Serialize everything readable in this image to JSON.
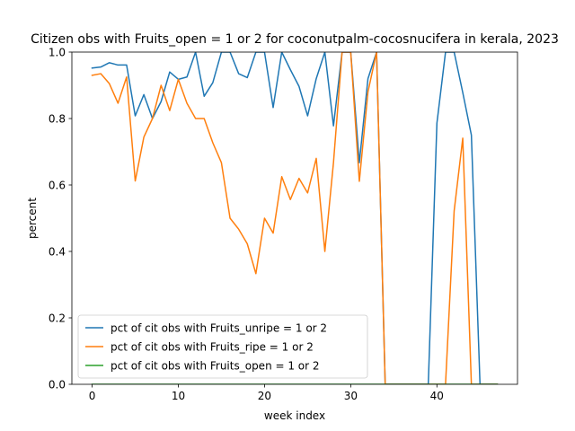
{
  "chart_data": {
    "type": "line",
    "title": "Citizen obs with Fruits_open = 1 or 2 for coconutpalm-cocosnucifera in kerala, 2023",
    "xlabel": "week index",
    "ylabel": "percent",
    "xlim": [
      -2.35,
      49.35
    ],
    "ylim": [
      0,
      1.0
    ],
    "xticks": [
      0,
      10,
      20,
      30,
      40
    ],
    "yticks": [
      0.0,
      0.2,
      0.4,
      0.6,
      0.8,
      1.0
    ],
    "ytick_labels": [
      "0.0",
      "0.2",
      "0.4",
      "0.6",
      "0.8",
      "1.0"
    ],
    "legend_position": "lower-left",
    "grid": false,
    "series": [
      {
        "name": "pct of cit obs with Fruits_unripe = 1 or 2",
        "color": "#1f77b4",
        "x": [
          0,
          1,
          2,
          3,
          4,
          5,
          6,
          7,
          8,
          9,
          10,
          11,
          12,
          13,
          14,
          15,
          16,
          17,
          18,
          19,
          20,
          21,
          22,
          23,
          24,
          25,
          26,
          27,
          28,
          29,
          30,
          31,
          32,
          33,
          34,
          35,
          36,
          37,
          38,
          39,
          40,
          41,
          42,
          43,
          44,
          45,
          46,
          47
        ],
        "y": [
          0.952,
          0.955,
          0.968,
          0.961,
          0.961,
          0.808,
          0.872,
          0.8,
          0.851,
          0.94,
          0.918,
          0.925,
          1.0,
          0.867,
          0.908,
          1.0,
          1.0,
          0.935,
          0.923,
          1.0,
          1.0,
          0.833,
          1.0,
          0.947,
          0.897,
          0.808,
          0.92,
          1.0,
          0.778,
          1.0,
          1.0,
          0.667,
          0.92,
          1.0,
          0.0,
          0.0,
          0.0,
          0.0,
          0.0,
          0.0,
          0.786,
          1.0,
          1.0,
          0.878,
          0.75,
          0.0,
          0.0,
          0.0
        ]
      },
      {
        "name": "pct of cit obs with Fruits_ripe = 1 or 2",
        "color": "#ff7f0e",
        "x": [
          0,
          1,
          2,
          3,
          4,
          5,
          6,
          7,
          8,
          9,
          10,
          11,
          12,
          13,
          14,
          15,
          16,
          17,
          18,
          19,
          20,
          21,
          22,
          23,
          24,
          25,
          26,
          27,
          28,
          29,
          30,
          31,
          32,
          33,
          34,
          35,
          36,
          37,
          38,
          39,
          40,
          41,
          42,
          43,
          44,
          45,
          46,
          47
        ],
        "y": [
          0.93,
          0.935,
          0.905,
          0.846,
          0.925,
          0.612,
          0.744,
          0.8,
          0.9,
          0.824,
          0.918,
          0.846,
          0.8,
          0.8,
          0.727,
          0.667,
          0.5,
          0.467,
          0.423,
          0.333,
          0.5,
          0.455,
          0.625,
          0.556,
          0.62,
          0.576,
          0.68,
          0.4,
          0.667,
          1.0,
          1.0,
          0.611,
          0.88,
          1.0,
          0.0,
          0.0,
          0.0,
          0.0,
          0.0,
          0.0,
          0.0,
          0.0,
          0.522,
          0.741,
          0.0,
          0.0,
          0.0,
          0.0
        ]
      },
      {
        "name": "pct of cit obs with Fruits_open = 1 or 2",
        "color": "#2ca02c",
        "x": [
          0,
          1,
          2,
          3,
          4,
          5,
          6,
          7,
          8,
          9,
          10,
          11,
          12,
          13,
          14,
          15,
          16,
          17,
          18,
          19,
          20,
          21,
          22,
          23,
          24,
          25,
          26,
          27,
          28,
          29,
          30,
          31,
          32,
          33,
          34,
          35,
          36,
          37,
          38,
          39,
          40,
          41,
          42,
          43,
          44,
          45,
          46,
          47
        ],
        "y": [
          0,
          0,
          0,
          0,
          0,
          0,
          0,
          0,
          0,
          0,
          0,
          0,
          0,
          0,
          0,
          0,
          0,
          0,
          0,
          0,
          0,
          0,
          0,
          0,
          0,
          0,
          0,
          0,
          0,
          0,
          0,
          0,
          0,
          0,
          0,
          0,
          0,
          0,
          0,
          0,
          0,
          0,
          0,
          0,
          0,
          0,
          0,
          0
        ]
      }
    ]
  }
}
